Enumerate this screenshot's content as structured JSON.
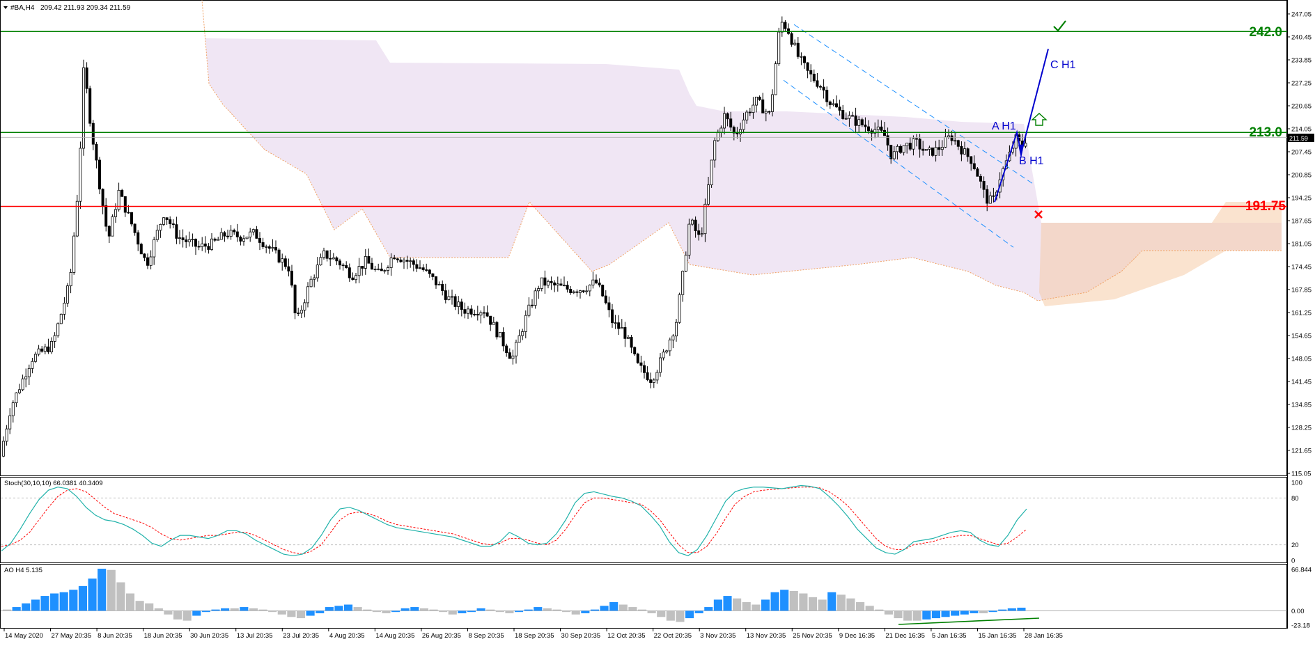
{
  "header": {
    "symbol_label": "#BA,H4",
    "ohlc": "209.42 211.93 209.34 211.59"
  },
  "colors": {
    "candle": "#000000",
    "grid_line": "#c0c0c0",
    "level_green": "#008000",
    "level_red": "#ff0000",
    "cloud_fill": "#ddc8e6",
    "cloud_edge": "#f0a060",
    "channel": "#1e90ff",
    "wave": "#0000cd",
    "stoch_main": "#20b2aa",
    "stoch_signal": "#ff0000",
    "ao_up": "#1e90ff",
    "ao_down": "#c0c0c0"
  },
  "levels": {
    "upper": {
      "value": 242.0,
      "label": "242.0"
    },
    "middle": {
      "value": 213.0,
      "label": "213.0"
    },
    "lower": {
      "value": 191.75,
      "label": "191.75"
    }
  },
  "current_price_tag": "211.59",
  "price_axis": [
    "247.05",
    "240.45",
    "233.85",
    "227.25",
    "220.65",
    "214.05",
    "207.45",
    "200.85",
    "194.25",
    "187.65",
    "181.05",
    "174.45",
    "167.85",
    "161.25",
    "154.65",
    "148.05",
    "141.45",
    "134.85",
    "128.25",
    "121.65",
    "115.05"
  ],
  "time_axis": [
    "14 May 2020",
    "27 May 20:35",
    "8 Jun 20:35",
    "18 Jun 20:35",
    "30 Jun 20:35",
    "13 Jul 20:35",
    "23 Jul 20:35",
    "4 Aug 20:35",
    "14 Aug 20:35",
    "26 Aug 20:35",
    "8 Sep 20:35",
    "18 Sep 20:35",
    "30 Sep 20:35",
    "12 Oct 20:35",
    "22 Oct 20:35",
    "3 Nov 20:35",
    "13 Nov 20:35",
    "25 Nov 20:35",
    "9 Dec 16:35",
    "21 Dec 16:35",
    "5 Jan 16:35",
    "15 Jan 16:35",
    "28 Jan 16:35"
  ],
  "wave_labels": {
    "a": "A H1",
    "b": "B H1",
    "c": "C H1"
  },
  "icons": {
    "target": "check-icon",
    "breakout": "up-arrow-icon",
    "stop": "cross-icon"
  },
  "stochastic": {
    "label": "Stoch(30,10,10) 66.0381 40.3409",
    "scale": [
      "100",
      "80",
      "20",
      "0"
    ],
    "main": [
      12,
      22,
      40,
      60,
      78,
      90,
      94,
      92,
      82,
      68,
      58,
      52,
      50,
      46,
      40,
      32,
      22,
      18,
      26,
      32,
      32,
      30,
      28,
      32,
      38,
      38,
      34,
      26,
      20,
      14,
      8,
      6,
      8,
      16,
      32,
      52,
      66,
      68,
      64,
      58,
      52,
      46,
      42,
      40,
      38,
      36,
      34,
      32,
      30,
      26,
      22,
      18,
      18,
      24,
      36,
      30,
      22,
      20,
      22,
      34,
      52,
      74,
      86,
      88,
      85,
      82,
      80,
      76,
      70,
      58,
      44,
      24,
      10,
      6,
      14,
      32,
      54,
      76,
      88,
      92,
      94,
      94,
      93,
      92,
      94,
      96,
      95,
      92,
      82,
      70,
      56,
      40,
      28,
      16,
      10,
      8,
      14,
      24,
      26,
      28,
      32,
      36,
      38,
      36,
      26,
      20,
      18,
      32,
      52,
      66
    ],
    "signal": [
      18,
      20,
      26,
      36,
      52,
      68,
      82,
      90,
      92,
      88,
      78,
      68,
      60,
      56,
      52,
      48,
      42,
      34,
      28,
      26,
      28,
      30,
      32,
      32,
      34,
      36,
      36,
      32,
      26,
      20,
      14,
      10,
      8,
      12,
      20,
      36,
      52,
      60,
      62,
      60,
      56,
      50,
      46,
      44,
      42,
      40,
      38,
      36,
      34,
      30,
      26,
      22,
      20,
      22,
      28,
      28,
      26,
      22,
      20,
      26,
      40,
      58,
      74,
      80,
      80,
      78,
      76,
      74,
      72,
      64,
      52,
      36,
      20,
      10,
      10,
      18,
      34,
      54,
      72,
      82,
      88,
      90,
      91,
      92,
      93,
      94,
      94,
      93,
      88,
      80,
      70,
      56,
      42,
      28,
      18,
      14,
      14,
      20,
      22,
      24,
      28,
      30,
      32,
      32,
      28,
      24,
      20,
      22,
      30,
      40
    ]
  },
  "ao": {
    "label": "AO H4  5.135",
    "scale": [
      "66.844",
      "0.00",
      "-23.18"
    ],
    "values": [
      2,
      6,
      12,
      18,
      24,
      28,
      30,
      34,
      40,
      52,
      68,
      66,
      46,
      28,
      16,
      12,
      4,
      -6,
      -14,
      -16,
      -8,
      -2,
      2,
      4,
      4,
      6,
      4,
      2,
      -2,
      -6,
      -10,
      -12,
      -8,
      -4,
      6,
      8,
      10,
      6,
      2,
      -2,
      -4,
      -2,
      4,
      6,
      4,
      2,
      -2,
      -6,
      -4,
      -2,
      4,
      2,
      -2,
      -4,
      -2,
      2,
      6,
      4,
      2,
      -2,
      -6,
      -4,
      2,
      8,
      14,
      10,
      6,
      2,
      -4,
      -10,
      -16,
      -18,
      -12,
      -4,
      6,
      18,
      24,
      20,
      14,
      10,
      18,
      30,
      34,
      32,
      28,
      22,
      18,
      30,
      26,
      20,
      14,
      8,
      2,
      -6,
      -12,
      -16,
      -16,
      -14,
      -12,
      -10,
      -8,
      -6,
      -4,
      -4,
      -2,
      2,
      4,
      5
    ]
  }
}
